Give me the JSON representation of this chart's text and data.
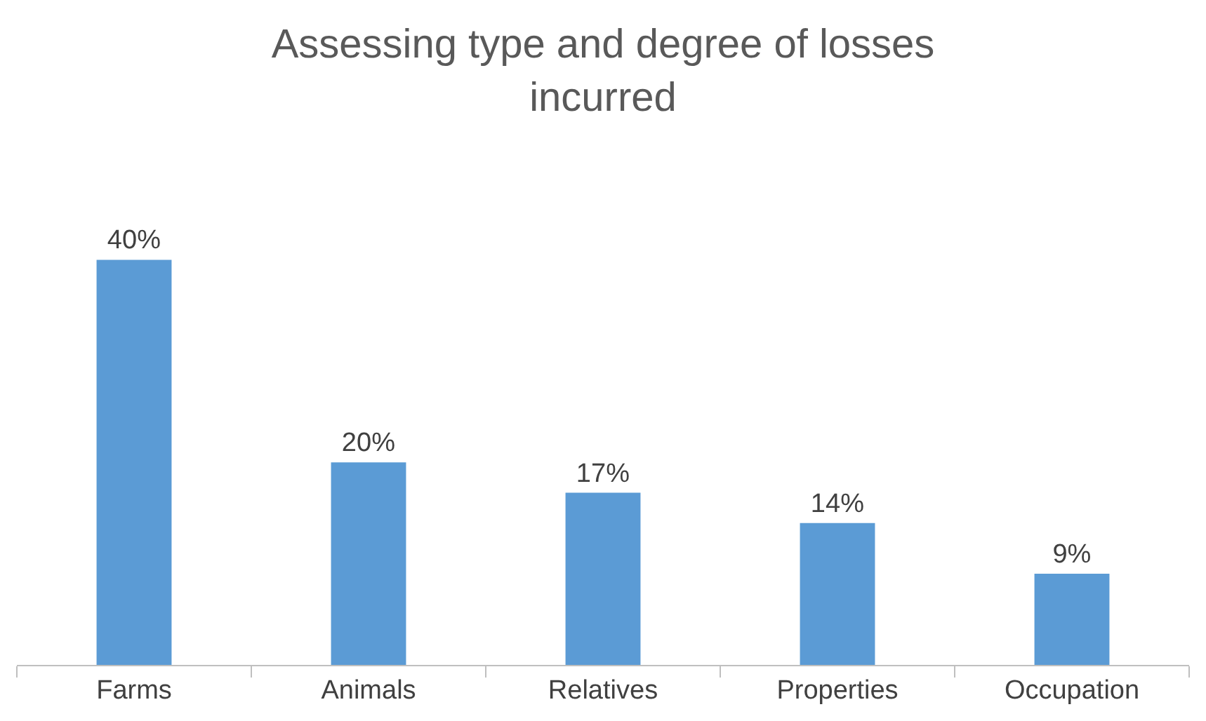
{
  "chart_data": {
    "type": "bar",
    "title": "Assessing type and degree of losses incurred",
    "categories": [
      "Farms",
      "Animals",
      "Relatives",
      "Properties",
      "Occupation"
    ],
    "values": [
      40,
      20,
      17,
      14,
      9
    ],
    "value_labels": [
      "40%",
      "20%",
      "17%",
      "14%",
      "9%"
    ],
    "color": "#5b9bd5",
    "grid": false,
    "legend": false
  }
}
